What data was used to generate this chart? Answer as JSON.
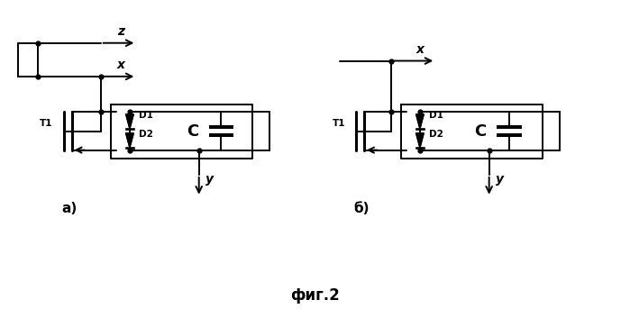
{
  "fig_width": 6.99,
  "fig_height": 3.53,
  "bg_color": "#ffffff",
  "line_color": "#000000",
  "line_width": 1.4,
  "caption": "фиг.2",
  "label_a": "а)",
  "label_b": "б)"
}
